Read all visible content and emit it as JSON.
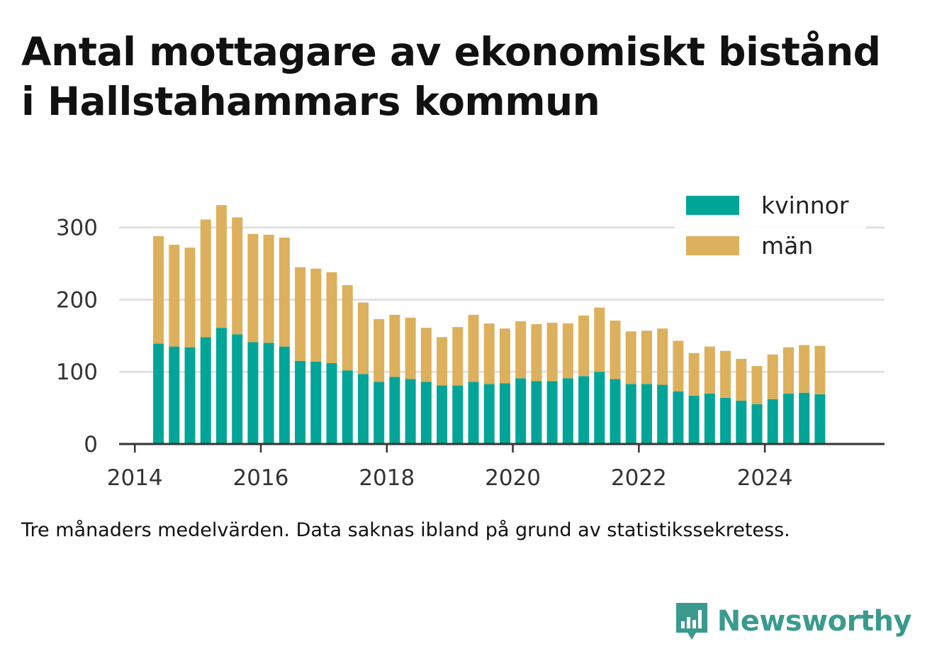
{
  "title_line1": "Antal mottagare av ekonomiskt bistånd",
  "title_line2": "i Hallstahammars kommun",
  "caption": "Tre månaders medelvärden. Data saknas ibland på grund av statistikssekretess.",
  "brand": {
    "name": "Newsworthy",
    "icon": "newsworthy-logo-icon",
    "color": "#3a9a8e"
  },
  "colors": {
    "kvinnor": "#00a598",
    "man": "#dcb05c",
    "grid": "#dddddd",
    "axis": "#333333"
  },
  "chart_data": {
    "type": "bar",
    "stacked": true,
    "title": "Antal mottagare av ekonomiskt bistånd i Hallstahammars kommun",
    "xlabel": "",
    "ylabel": "",
    "ylim": [
      0,
      340
    ],
    "xlim": [
      2013.75,
      2025.9
    ],
    "yticks": [
      0,
      100,
      200,
      300
    ],
    "xticks": [
      "2014",
      "2016",
      "2018",
      "2020",
      "2022",
      "2024"
    ],
    "grid": true,
    "legend_position": "top-right",
    "x": [
      2014.375,
      2014.625,
      2014.875,
      2015.125,
      2015.375,
      2015.625,
      2015.875,
      2016.125,
      2016.375,
      2016.625,
      2016.875,
      2017.125,
      2017.375,
      2017.625,
      2017.875,
      2018.125,
      2018.375,
      2018.625,
      2018.875,
      2019.125,
      2019.375,
      2019.625,
      2019.875,
      2020.125,
      2020.375,
      2020.625,
      2020.875,
      2021.125,
      2021.375,
      2021.625,
      2021.875,
      2022.125,
      2022.375,
      2022.625,
      2022.875,
      2023.125,
      2023.375,
      2023.625,
      2023.875,
      2024.125,
      2024.375,
      2024.625,
      2024.875
    ],
    "series": [
      {
        "name": "kvinnor",
        "color": "#00a598",
        "values": [
          139,
          135,
          134,
          148,
          161,
          152,
          141,
          140,
          135,
          115,
          114,
          112,
          102,
          97,
          86,
          93,
          90,
          86,
          81,
          81,
          86,
          83,
          84,
          91,
          87,
          87,
          91,
          94,
          100,
          90,
          83,
          83,
          82,
          73,
          67,
          70,
          64,
          60,
          55,
          62,
          70,
          71,
          69
        ]
      },
      {
        "name": "män",
        "color": "#dcb05c",
        "values": [
          149,
          141,
          138,
          163,
          170,
          162,
          150,
          150,
          151,
          130,
          129,
          126,
          118,
          99,
          87,
          86,
          85,
          75,
          67,
          81,
          93,
          84,
          76,
          79,
          79,
          81,
          76,
          84,
          89,
          81,
          73,
          74,
          78,
          70,
          59,
          65,
          65,
          58,
          53,
          62,
          64,
          66,
          67
        ]
      }
    ]
  }
}
